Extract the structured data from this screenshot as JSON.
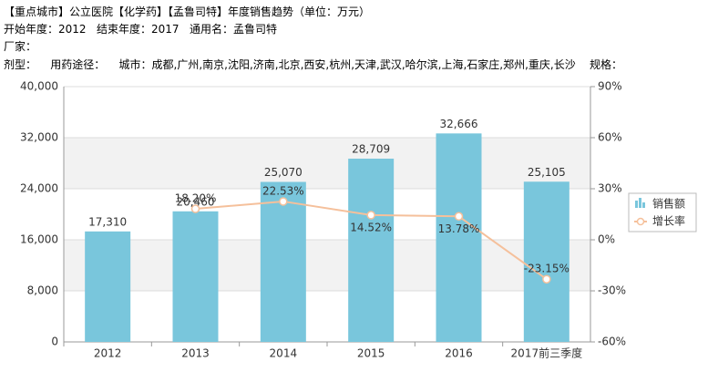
{
  "header": {
    "title": "【重点城市】公立医院【化学药】【孟鲁司特】年度销售趋势（单位：万元）",
    "lines": [
      "开始年度：2012   结束年度：2017   通用名：孟鲁司特",
      "厂家：",
      "剂型：    用药途径：    城市：成都,广州,南京,沈阳,济南,北京,西安,杭州,天津,武汉,哈尔滨,上海,石家庄,郑州,重庆,长沙    规格："
    ]
  },
  "chart_data": {
    "type": "bar-line",
    "categories": [
      "2012",
      "2013",
      "2014",
      "2015",
      "2016",
      "2017前三季度"
    ],
    "series": [
      {
        "name": "销售额",
        "type": "bar",
        "color": "#79c6dc",
        "values": [
          17310,
          20460,
          25070,
          28709,
          32666,
          25105
        ],
        "value_labels": [
          "17,310",
          "20,460",
          "25,070",
          "28,709",
          "32,666",
          "25,105"
        ]
      },
      {
        "name": "增长率",
        "type": "line",
        "axis": "y2",
        "color": "#f5c09b",
        "values": [
          null,
          18.2,
          22.53,
          14.52,
          13.78,
          -23.15
        ],
        "value_labels": [
          null,
          "18.20%",
          "22.53%",
          "14.52%",
          "13.78%",
          "-23.15%"
        ]
      }
    ],
    "ylim": [
      0,
      40000
    ],
    "yticks": [
      0,
      {
        "value": 8000,
        "label": "8,000"
      },
      {
        "value": 16000,
        "label": "16,000"
      },
      {
        "value": 24000,
        "label": "24,000"
      },
      {
        "value": 32000,
        "label": "32,000"
      },
      {
        "value": 40000,
        "label": "40,000"
      }
    ],
    "y2lim": [
      -60,
      90
    ],
    "y2ticks": [
      {
        "value": -60,
        "label": "-60%"
      },
      {
        "value": -30,
        "label": "-30%"
      },
      {
        "value": 0,
        "label": "0%"
      },
      {
        "value": 30,
        "label": "30%"
      },
      {
        "value": 60,
        "label": "60%"
      },
      {
        "value": 90,
        "label": "90%"
      }
    ],
    "grid": true
  }
}
